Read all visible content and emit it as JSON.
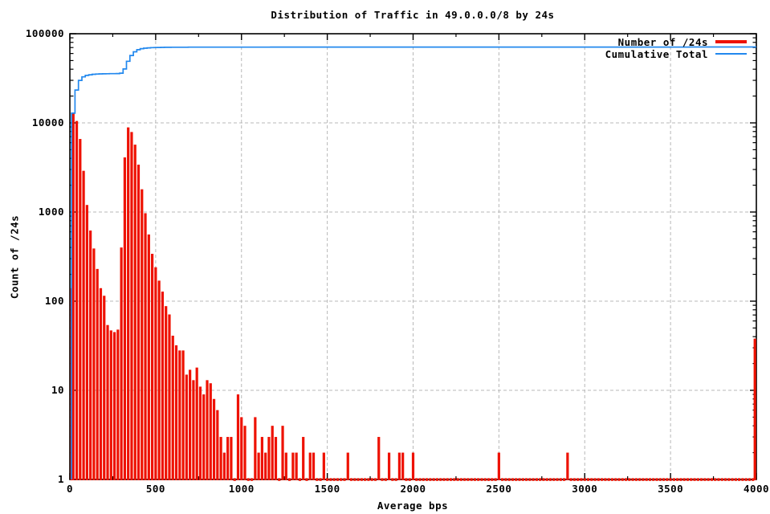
{
  "chart_data": {
    "type": "bar",
    "title": "Distribution of Traffic in 49.0.0.0/8 by 24s",
    "xlabel": "Average bps",
    "ylabel": "Count of /24s",
    "x_scale": "linear",
    "y_scale": "log",
    "xlim": [
      0,
      4000
    ],
    "ylim": [
      1,
      100000
    ],
    "x_ticks": [
      0,
      500,
      1000,
      1500,
      2000,
      2500,
      3000,
      3500,
      4000
    ],
    "x_minor_tick_interval": 250,
    "y_ticks": [
      1,
      10,
      100,
      1000,
      10000,
      100000
    ],
    "grid": true,
    "legend": {
      "position": "top-right",
      "entries": [
        {
          "label": "Number of /24s",
          "color": "#ee1100",
          "style": "thick-line"
        },
        {
          "label": "Cumulative Total",
          "color": "#2288ee",
          "style": "thin-line"
        }
      ]
    },
    "bars": {
      "name": "Number of /24s",
      "color": "#ee1100",
      "bin_width": 20,
      "default_count": 1,
      "counts": [
        [
          0,
          140
        ],
        [
          20,
          12700
        ],
        [
          40,
          10500
        ],
        [
          60,
          6600
        ],
        [
          80,
          2900
        ],
        [
          100,
          1200
        ],
        [
          120,
          620
        ],
        [
          140,
          390
        ],
        [
          160,
          230
        ],
        [
          180,
          140
        ],
        [
          200,
          115
        ],
        [
          220,
          54
        ],
        [
          240,
          47
        ],
        [
          260,
          45
        ],
        [
          280,
          48
        ],
        [
          300,
          400
        ],
        [
          320,
          4100
        ],
        [
          340,
          8900
        ],
        [
          360,
          7900
        ],
        [
          380,
          5700
        ],
        [
          400,
          3400
        ],
        [
          420,
          1800
        ],
        [
          440,
          970
        ],
        [
          460,
          560
        ],
        [
          480,
          340
        ],
        [
          500,
          240
        ],
        [
          520,
          170
        ],
        [
          540,
          128
        ],
        [
          560,
          88
        ],
        [
          580,
          71
        ],
        [
          600,
          41
        ],
        [
          620,
          32
        ],
        [
          640,
          28
        ],
        [
          660,
          28
        ],
        [
          680,
          15
        ],
        [
          700,
          17
        ],
        [
          720,
          13
        ],
        [
          740,
          18
        ],
        [
          760,
          11
        ],
        [
          780,
          9
        ],
        [
          800,
          13
        ],
        [
          820,
          12
        ],
        [
          840,
          8
        ],
        [
          860,
          6
        ],
        [
          880,
          3
        ],
        [
          900,
          2
        ],
        [
          920,
          3
        ],
        [
          940,
          3
        ],
        [
          980,
          9
        ],
        [
          1000,
          5
        ],
        [
          1020,
          4
        ],
        [
          1080,
          5
        ],
        [
          1100,
          2
        ],
        [
          1120,
          3
        ],
        [
          1140,
          2
        ],
        [
          1160,
          3
        ],
        [
          1180,
          4
        ],
        [
          1200,
          3
        ],
        [
          1240,
          4
        ],
        [
          1260,
          2
        ],
        [
          1300,
          2
        ],
        [
          1320,
          2
        ],
        [
          1360,
          3
        ],
        [
          1400,
          2
        ],
        [
          1420,
          2
        ],
        [
          1480,
          2
        ],
        [
          1620,
          2
        ],
        [
          1800,
          3
        ],
        [
          1860,
          2
        ],
        [
          1920,
          2
        ],
        [
          1940,
          2
        ],
        [
          2000,
          2
        ],
        [
          2500,
          2
        ],
        [
          2900,
          2
        ],
        [
          4000,
          38
        ]
      ]
    },
    "cumulative": {
      "name": "Cumulative Total",
      "color": "#2288ee",
      "definition": "running sum of bar counts",
      "approx_final_total": 70000
    }
  },
  "colors": {
    "background": "#ffffff",
    "axis": "#000000",
    "grid": "#b8b8b8",
    "bars": "#ee1100",
    "cumulative_line": "#2288ee"
  }
}
